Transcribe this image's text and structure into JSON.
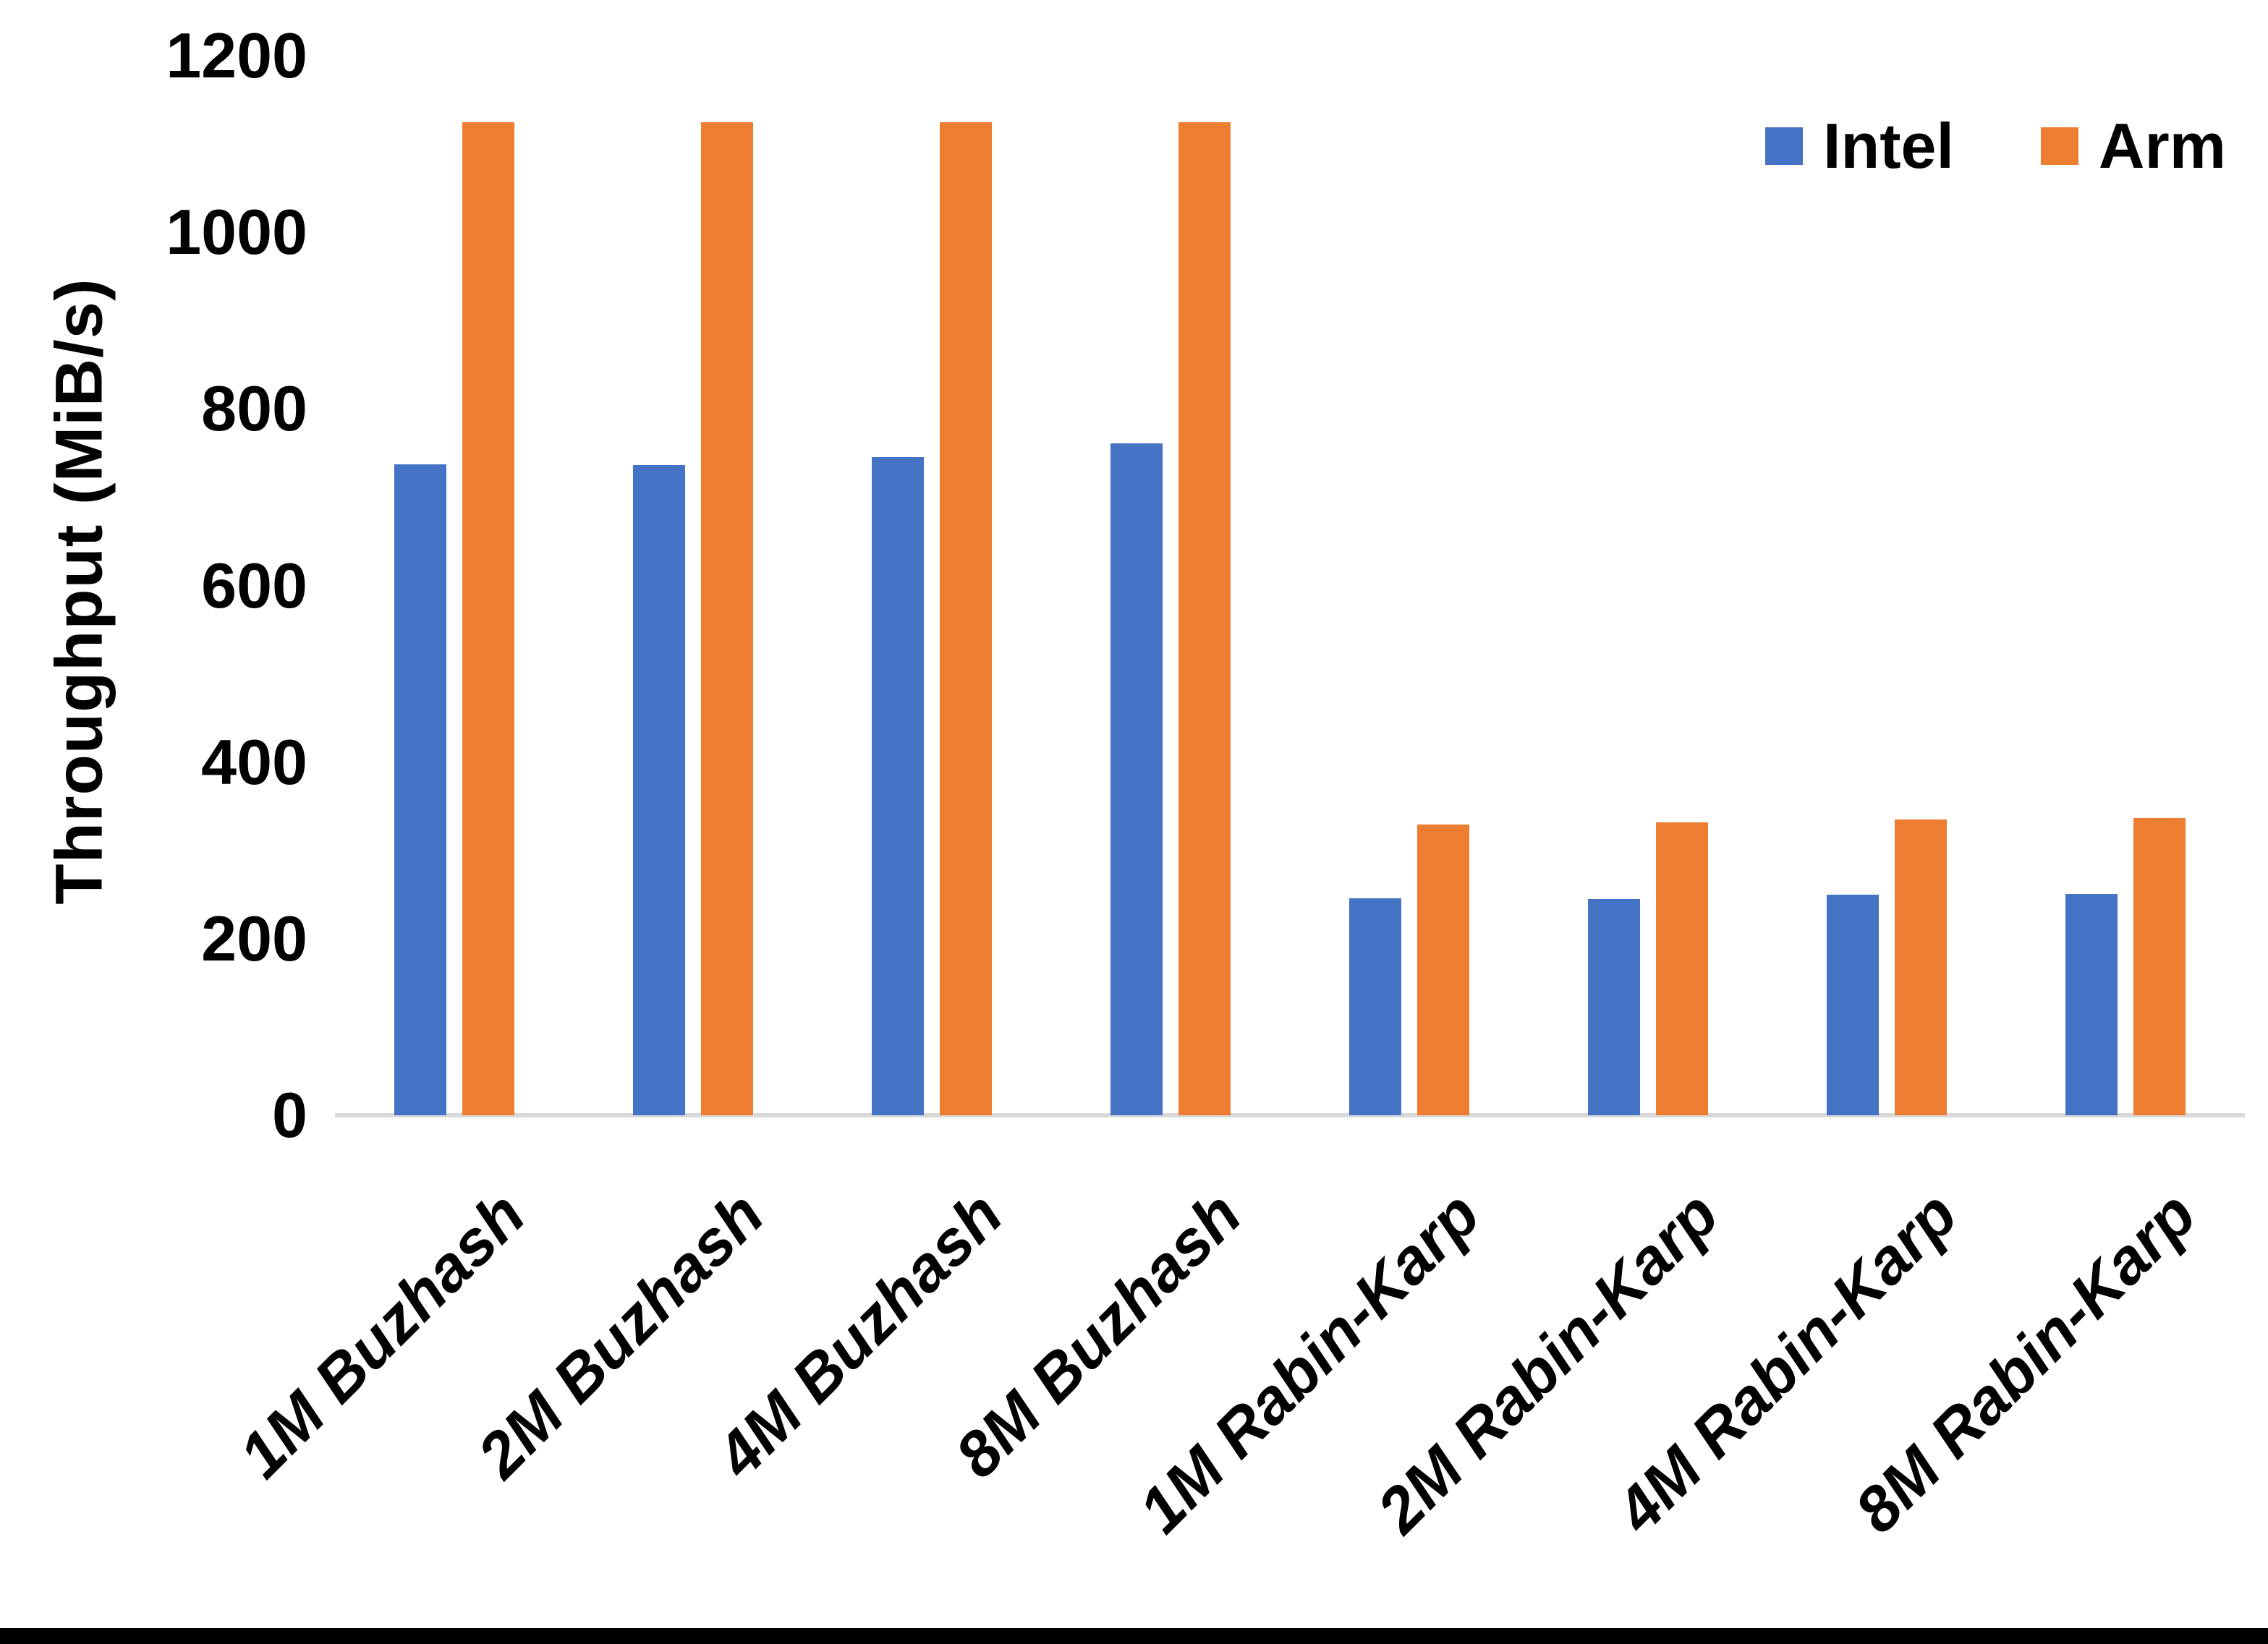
{
  "chart_data": {
    "type": "bar",
    "title": "",
    "xlabel": "",
    "ylabel": "Throughput (MiB/s)",
    "ylim": [
      0,
      1200
    ],
    "yticks": [
      0,
      200,
      400,
      600,
      800,
      1000,
      1200
    ],
    "grid": false,
    "legend_position": "top-right",
    "categories": [
      "1M Buzhash",
      "2M Buzhash",
      "4M Buzhash",
      "8M Buzhash",
      "1M Rabin-Karp",
      "2M Rabin-Karp",
      "4M Rabin-Karp",
      "8M Rabin-Karp"
    ],
    "series": [
      {
        "name": "Intel",
        "color": "#4472C4",
        "values": [
          737,
          736,
          745,
          761,
          246,
          245,
          250,
          251
        ]
      },
      {
        "name": "Arm",
        "color": "#ED7D31",
        "values": [
          1125,
          1125,
          1125,
          1125,
          329,
          332,
          335,
          337
        ]
      }
    ]
  },
  "legend": {
    "items": [
      {
        "label": "Intel",
        "color": "#4472C4"
      },
      {
        "label": "Arm",
        "color": "#ED7D31"
      }
    ]
  },
  "axis": {
    "y_title": "Throughput (MiB/s)",
    "tick_labels": [
      "0",
      "200",
      "400",
      "600",
      "800",
      "1000",
      "1200"
    ],
    "axis_line_color": "#D9D9D9"
  },
  "frame": {
    "bottom_bar_color": "#000000"
  }
}
